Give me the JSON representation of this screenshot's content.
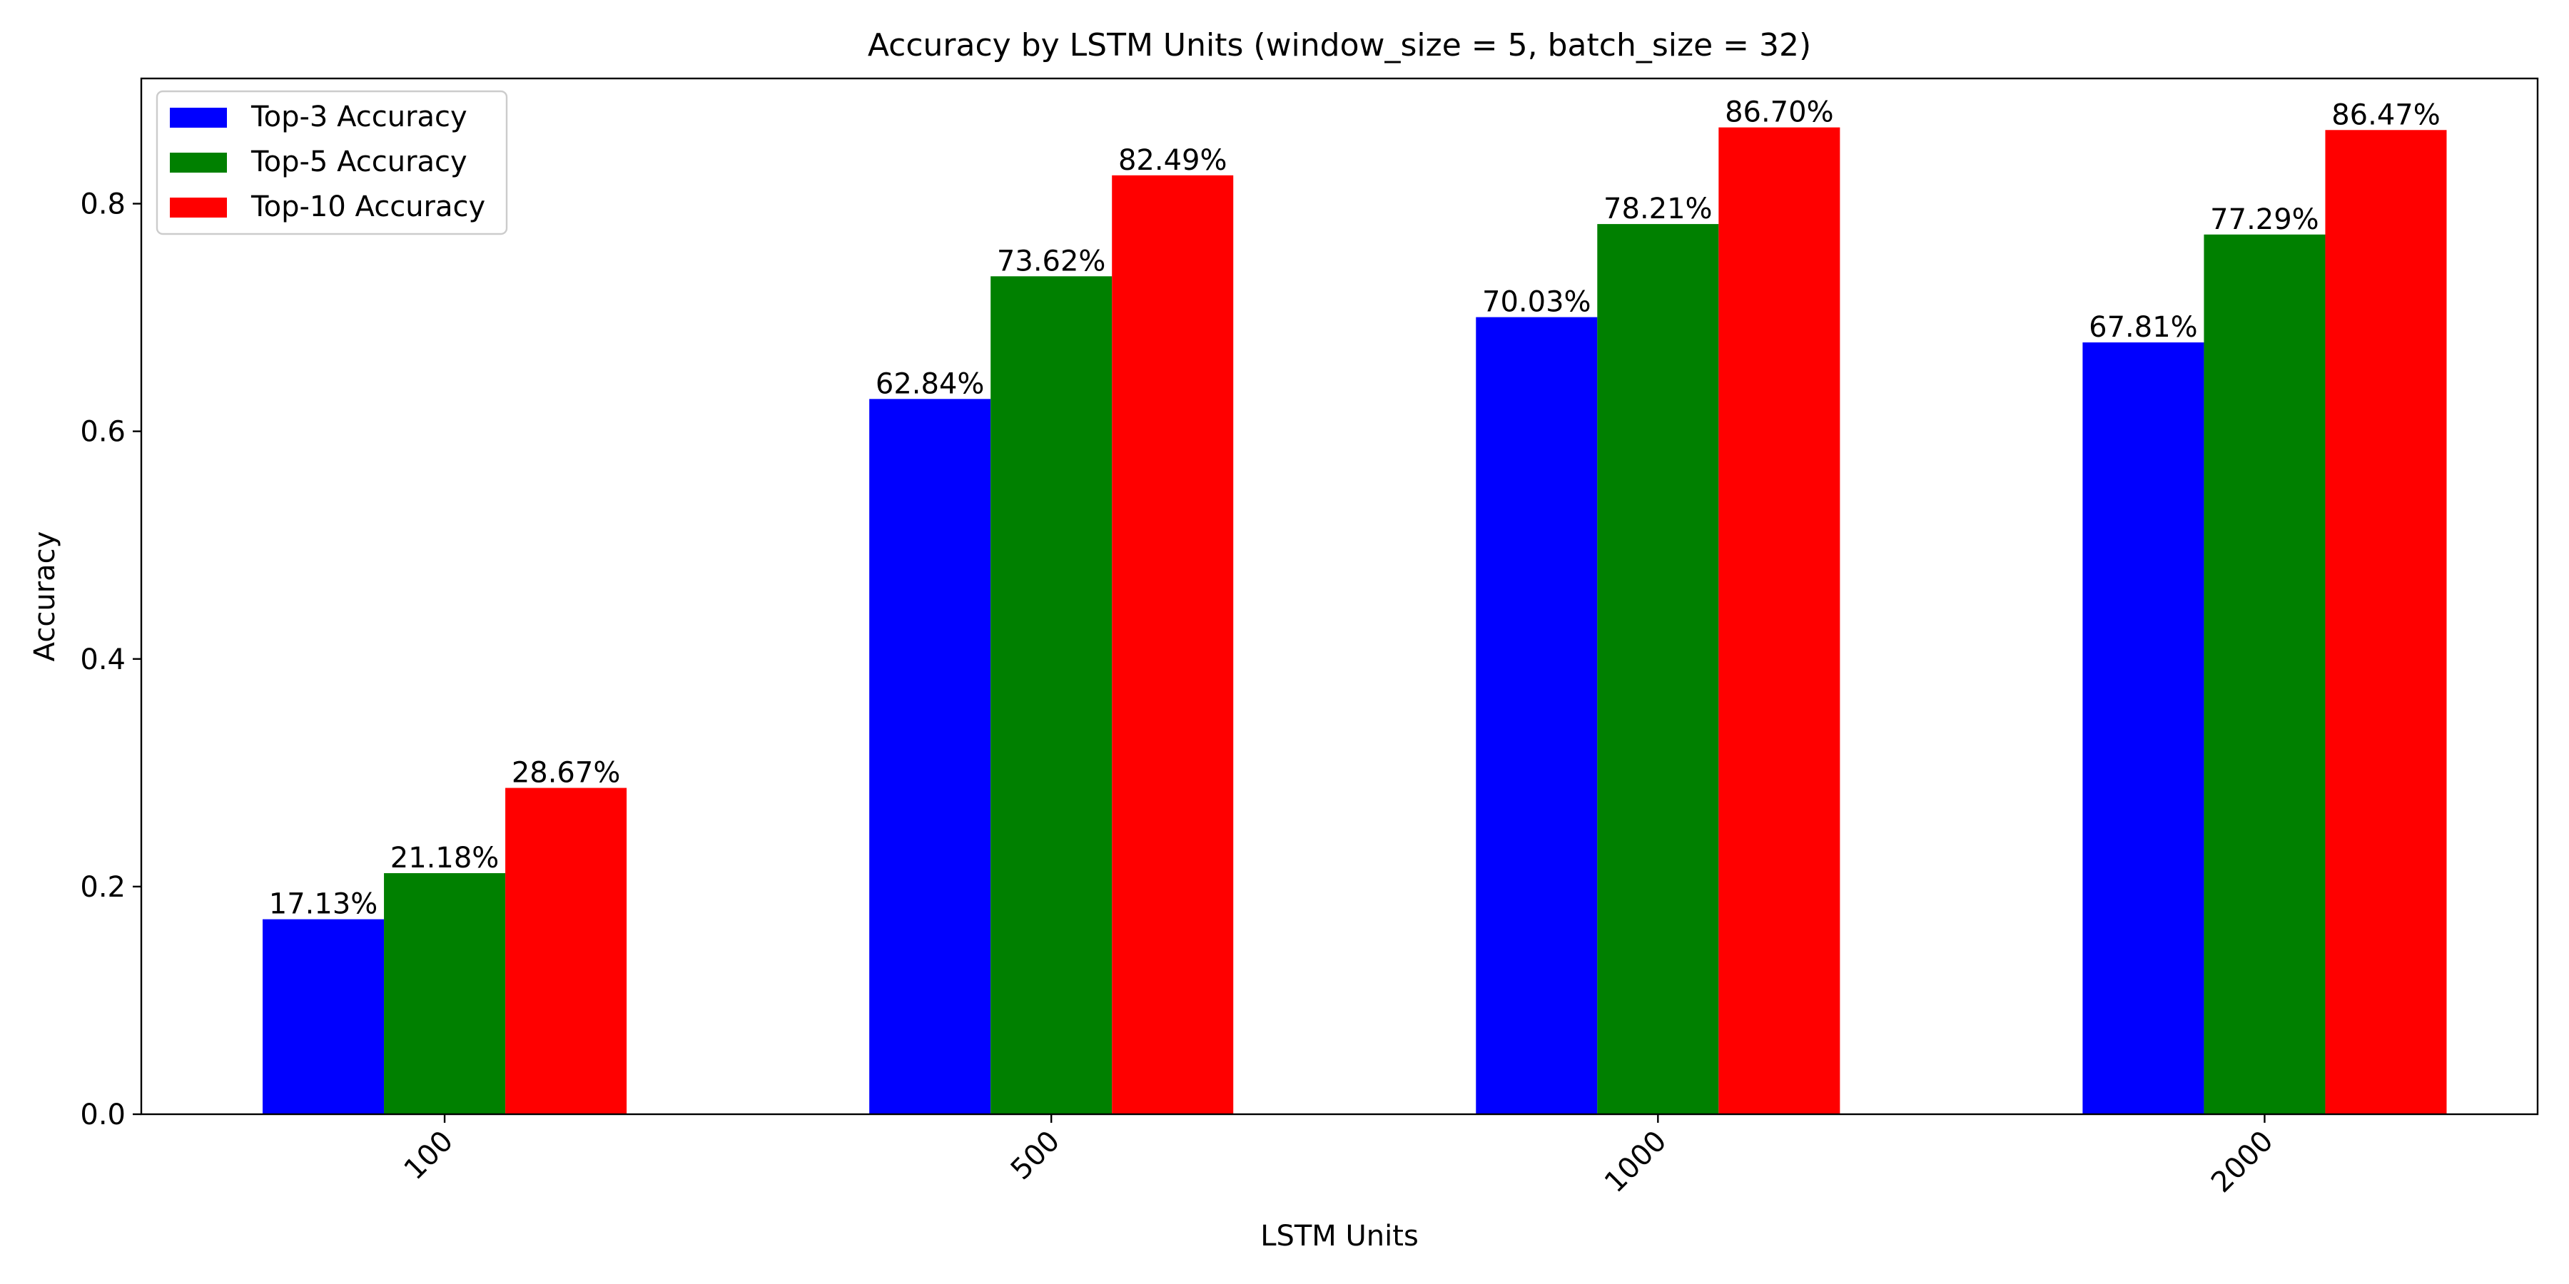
{
  "chart_data": {
    "type": "bar",
    "title": "Accuracy by LSTM Units (window_size = 5, batch_size = 32)",
    "xlabel": "LSTM Units",
    "ylabel": "Accuracy",
    "categories": [
      "100",
      "500",
      "1000",
      "2000"
    ],
    "series": [
      {
        "name": "Top-3 Accuracy",
        "color": "#0000ff",
        "values": [
          0.1713,
          0.6284,
          0.7003,
          0.6781
        ]
      },
      {
        "name": "Top-5 Accuracy",
        "color": "#008000",
        "values": [
          0.2118,
          0.7362,
          0.7821,
          0.7729
        ]
      },
      {
        "name": "Top-10 Accuracy",
        "color": "#ff0000",
        "values": [
          0.2867,
          0.8249,
          0.867,
          0.8647
        ]
      }
    ],
    "data_labels": [
      [
        "17.13%",
        "62.84%",
        "70.03%",
        "67.81%"
      ],
      [
        "21.18%",
        "73.62%",
        "78.21%",
        "77.29%"
      ],
      [
        "28.67%",
        "82.49%",
        "86.70%",
        "86.47%"
      ]
    ],
    "ylim": [
      0,
      0.91
    ],
    "yticks": [
      0.0,
      0.2,
      0.4,
      0.6,
      0.8
    ],
    "ytick_labels": [
      "0.0",
      "0.2",
      "0.4",
      "0.6",
      "0.8"
    ],
    "xtick_rotation": 45,
    "grid": false,
    "legend_position": "top-left"
  }
}
